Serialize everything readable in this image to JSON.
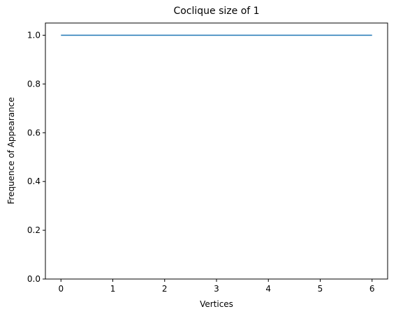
{
  "chart_data": {
    "type": "line",
    "title": "Coclique size of 1",
    "xlabel": "Vertices",
    "ylabel": "Frequence of Appearance",
    "x": [
      0,
      1,
      2,
      3,
      4,
      5,
      6
    ],
    "series": [
      {
        "values": [
          1.0,
          1.0,
          1.0,
          1.0,
          1.0,
          1.0,
          1.0
        ],
        "color": "#1f77b4"
      }
    ],
    "xlim": [
      -0.3,
      6.3
    ],
    "ylim": [
      0.0,
      1.05
    ],
    "xticks": [
      0,
      1,
      2,
      3,
      4,
      5,
      6
    ],
    "yticks": [
      0.0,
      0.2,
      0.4,
      0.6,
      0.8,
      1.0
    ],
    "xtick_labels": [
      "0",
      "1",
      "2",
      "3",
      "4",
      "5",
      "6"
    ],
    "ytick_labels": [
      "0.0",
      "0.2",
      "0.4",
      "0.6",
      "0.8",
      "1.0"
    ],
    "grid": false,
    "legend": "none"
  }
}
